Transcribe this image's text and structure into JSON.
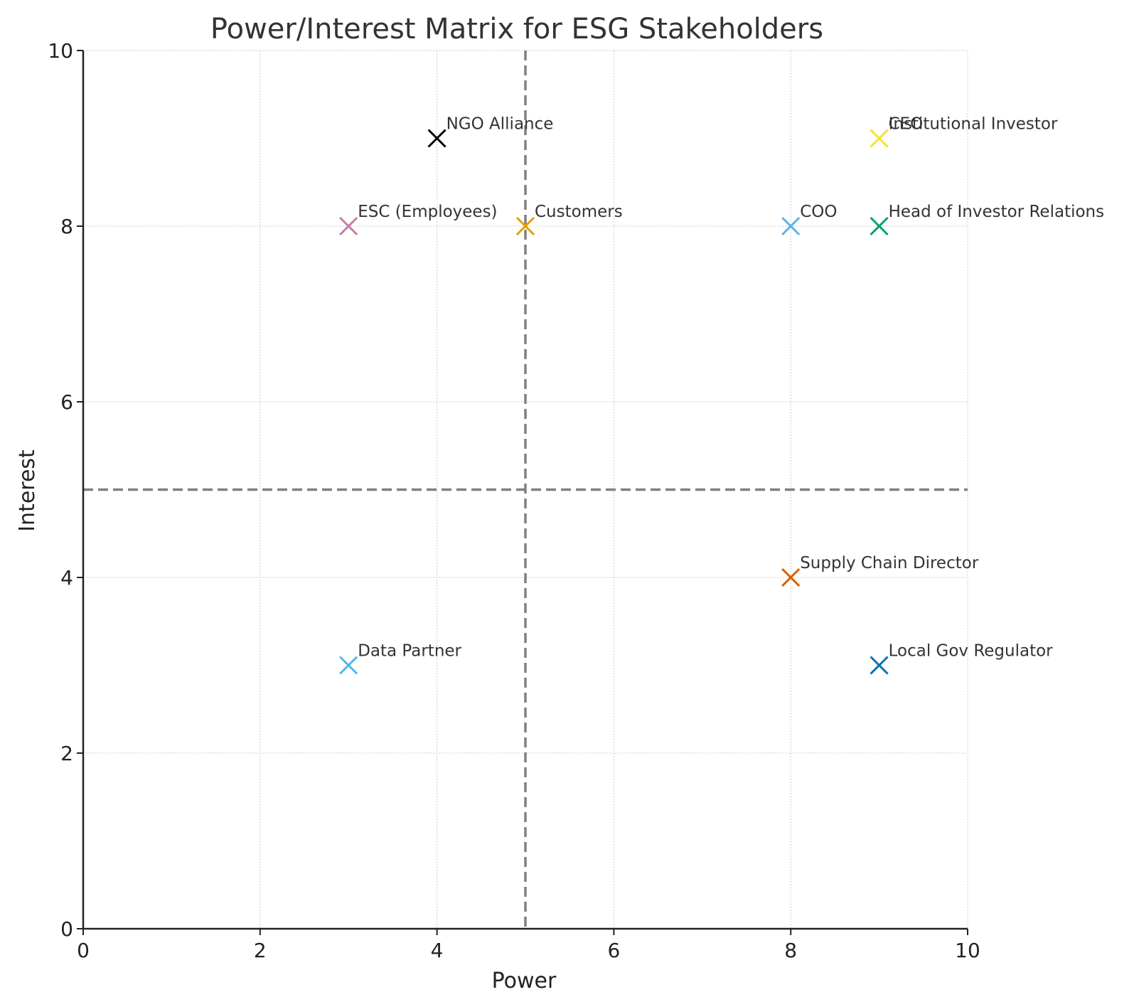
{
  "chart_data": {
    "type": "scatter",
    "title": "Power/Interest Matrix for ESG Stakeholders",
    "xlabel": "Power",
    "ylabel": "Interest",
    "xlim": [
      0,
      10
    ],
    "ylim": [
      0,
      10
    ],
    "xticks": [
      "0",
      "2",
      "4",
      "6",
      "8",
      "10"
    ],
    "yticks": [
      "0",
      "2",
      "4",
      "6",
      "8",
      "10"
    ],
    "grid": true,
    "marker": "x",
    "quadrant_lines": {
      "x": 5,
      "y": 5
    },
    "points": [
      {
        "label": "CEO",
        "x": 9,
        "y": 9,
        "color": "#F0E442"
      },
      {
        "label": "Institutional Investor",
        "x": 9,
        "y": 9,
        "color": "#F0E442"
      },
      {
        "label": "NGO Alliance",
        "x": 4,
        "y": 9,
        "color": "#000000"
      },
      {
        "label": "ESC (Employees)",
        "x": 3,
        "y": 8,
        "color": "#CC79A7"
      },
      {
        "label": "Customers",
        "x": 5,
        "y": 8,
        "color": "#E69F00"
      },
      {
        "label": "COO",
        "x": 8,
        "y": 8,
        "color": "#56B4E9"
      },
      {
        "label": "Head of Investor Relations",
        "x": 9,
        "y": 8,
        "color": "#009E73"
      },
      {
        "label": "Supply Chain Director",
        "x": 8,
        "y": 4,
        "color": "#D55E00"
      },
      {
        "label": "Data Partner",
        "x": 3,
        "y": 3,
        "color": "#56B4E9"
      },
      {
        "label": "Local Gov Regulator",
        "x": 9,
        "y": 3,
        "color": "#0072B2"
      }
    ]
  }
}
